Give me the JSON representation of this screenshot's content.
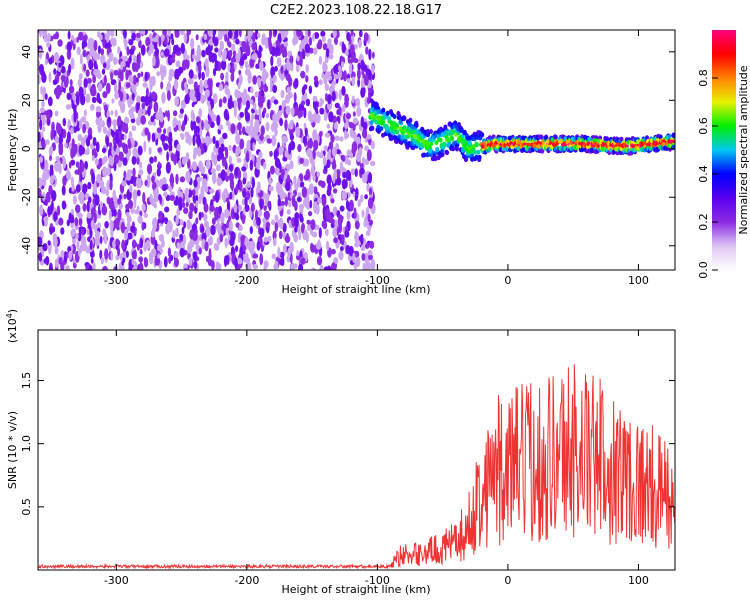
{
  "title": "C2E2.2023.108.22.18.G17",
  "chart_data": [
    {
      "type": "heatmap",
      "xlabel": "Height of straight line (km)",
      "ylabel": "Frequency (Hz)",
      "xlim": [
        -360,
        128
      ],
      "ylim": [
        -50,
        49
      ],
      "xticks": [
        -300,
        -200,
        -100,
        0,
        100
      ],
      "yticks": [
        -40,
        -20,
        0,
        20,
        40
      ],
      "colorbar": {
        "label": "Normalized spectral amplitude",
        "range": [
          0.0,
          1.0
        ],
        "ticks": [
          "0.0",
          "0.2",
          "0.4",
          "0.6",
          "0.8"
        ],
        "tick_values": [
          0.0,
          0.2,
          0.4,
          0.6,
          0.8
        ],
        "colormap": [
          "#ffffff",
          "#dcc4f2",
          "#8b2be2",
          "#5a00f0",
          "#0000ff",
          "#00c8f0",
          "#00ee00",
          "#e8f000",
          "#ff8000",
          "#ff0000",
          "#ff0080"
        ]
      },
      "regions": [
        {
          "name": "noise",
          "x_range": [
            -360,
            -103
          ],
          "freq_range": [
            -50,
            49
          ],
          "amplitude": 0.12
        },
        {
          "name": "signal_track",
          "x": [
            -105,
            -90,
            -70,
            -60,
            -50,
            -40,
            -30,
            -20,
            -10,
            0,
            30,
            60,
            90,
            110,
            128
          ],
          "freq": [
            14,
            10,
            5,
            1,
            3,
            6,
            0,
            1,
            2,
            2,
            2,
            2,
            1,
            2,
            3
          ],
          "amplitude": 0.85
        }
      ]
    },
    {
      "type": "line",
      "xlabel": "Height of straight line (km)",
      "ylabel": "SNR (10 * v/v)",
      "multiplier": "(x10",
      "multiplier_exp": "4",
      "multiplier_close": ")",
      "xlim": [
        -360,
        128
      ],
      "ylim": [
        0.0,
        1.9
      ],
      "xticks": [
        -300,
        -200,
        -100,
        0,
        100
      ],
      "yticks": [
        0.5,
        1.0,
        1.5
      ],
      "yticklabels": [
        "0.5",
        "1.0",
        "1.5"
      ],
      "series": [
        {
          "color": "#ee3333",
          "envelope_x": [
            -360,
            -90,
            -85,
            -70,
            -50,
            -40,
            -30,
            -25,
            -20,
            -15,
            -10,
            0,
            10,
            20,
            30,
            40,
            50,
            60,
            70,
            80,
            90,
            100,
            110,
            120,
            128
          ],
          "envelope_y": [
            0.03,
            0.03,
            0.18,
            0.2,
            0.28,
            0.35,
            0.55,
            0.8,
            1.0,
            1.2,
            1.25,
            1.3,
            1.35,
            1.4,
            1.45,
            1.5,
            1.55,
            1.45,
            1.4,
            1.3,
            1.2,
            1.15,
            1.05,
            0.95,
            0.9
          ]
        }
      ]
    }
  ]
}
